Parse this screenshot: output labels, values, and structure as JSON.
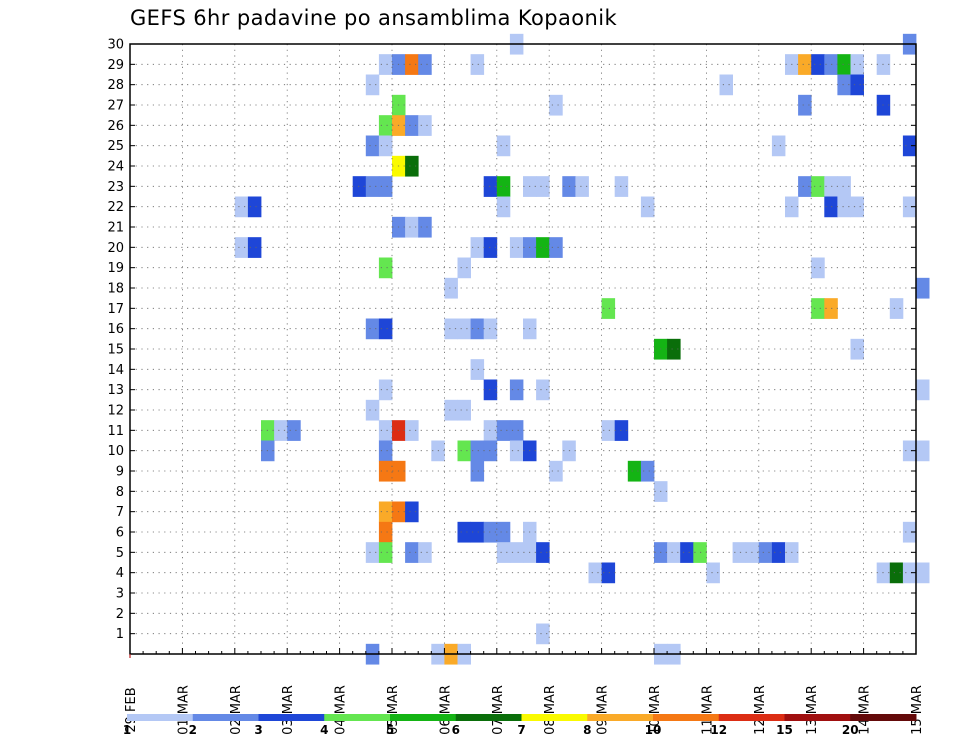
{
  "chart_data": {
    "type": "heatmap",
    "title": "GEFS 6hr padavine po ansamblima Kopaonik",
    "x_tick_labels": [
      "29 FEB",
      "01 MAR",
      "02 MAR",
      "03 MAR",
      "04 MAR",
      "05 MAR",
      "06 MAR",
      "07 MAR",
      "08 MAR",
      "09 MAR",
      "10 MAR",
      "11 MAR",
      "12 MAR",
      "13 MAR",
      "14 MAR",
      "15 MAR"
    ],
    "x_range_days": [
      0,
      15
    ],
    "steps_per_day": 4,
    "y_tick_labels": [
      "1",
      "2",
      "3",
      "4",
      "5",
      "6",
      "7",
      "8",
      "9",
      "10",
      "11",
      "12",
      "13",
      "14",
      "15",
      "16",
      "17",
      "18",
      "19",
      "20",
      "21",
      "22",
      "23",
      "24",
      "25",
      "26",
      "27",
      "28",
      "29",
      "30"
    ],
    "y_range": [
      0,
      30
    ],
    "grid": true,
    "legend_position": "bottom",
    "legend": {
      "colors": [
        "#b4c8f5",
        "#6489e6",
        "#1e46d7",
        "#64e650",
        "#14b414",
        "#0a6e0a",
        "#fafa00",
        "#faaa28",
        "#f57814",
        "#dc2d14",
        "#a00f0f",
        "#640a0a"
      ],
      "labels": [
        "1",
        "2",
        "3",
        "4",
        "5",
        "6",
        "7",
        "8",
        "10",
        "12",
        "15",
        "20"
      ]
    },
    "cells": [
      {
        "m": 30,
        "s": 29,
        "c": 1
      },
      {
        "m": 30,
        "s": 59,
        "c": 2
      },
      {
        "m": 29,
        "s": 19,
        "c": 1
      },
      {
        "m": 29,
        "s": 20,
        "c": 2
      },
      {
        "m": 29,
        "s": 21,
        "c": 9
      },
      {
        "m": 29,
        "s": 22,
        "c": 2
      },
      {
        "m": 29,
        "s": 26,
        "c": 1
      },
      {
        "m": 29,
        "s": 50,
        "c": 1
      },
      {
        "m": 29,
        "s": 51,
        "c": 8
      },
      {
        "m": 29,
        "s": 52,
        "c": 3
      },
      {
        "m": 29,
        "s": 53,
        "c": 2
      },
      {
        "m": 29,
        "s": 54,
        "c": 5
      },
      {
        "m": 29,
        "s": 55,
        "c": 1
      },
      {
        "m": 29,
        "s": 57,
        "c": 1
      },
      {
        "m": 28,
        "s": 18,
        "c": 1
      },
      {
        "m": 28,
        "s": 45,
        "c": 1
      },
      {
        "m": 28,
        "s": 54,
        "c": 2
      },
      {
        "m": 28,
        "s": 55,
        "c": 3
      },
      {
        "m": 27,
        "s": 20,
        "c": 4
      },
      {
        "m": 27,
        "s": 32,
        "c": 1
      },
      {
        "m": 27,
        "s": 51,
        "c": 2
      },
      {
        "m": 27,
        "s": 57,
        "c": 3
      },
      {
        "m": 26,
        "s": 19,
        "c": 4
      },
      {
        "m": 26,
        "s": 20,
        "c": 8
      },
      {
        "m": 26,
        "s": 21,
        "c": 2
      },
      {
        "m": 26,
        "s": 22,
        "c": 1
      },
      {
        "m": 25,
        "s": 18,
        "c": 2
      },
      {
        "m": 25,
        "s": 19,
        "c": 1
      },
      {
        "m": 25,
        "s": 28,
        "c": 1
      },
      {
        "m": 25,
        "s": 49,
        "c": 1
      },
      {
        "m": 25,
        "s": 59,
        "c": 3
      },
      {
        "m": 24,
        "s": 20,
        "c": 7
      },
      {
        "m": 24,
        "s": 21,
        "c": 6
      },
      {
        "m": 23,
        "s": 17,
        "c": 3
      },
      {
        "m": 23,
        "s": 18,
        "c": 2
      },
      {
        "m": 23,
        "s": 19,
        "c": 2
      },
      {
        "m": 23,
        "s": 27,
        "c": 3
      },
      {
        "m": 23,
        "s": 28,
        "c": 5
      },
      {
        "m": 23,
        "s": 30,
        "c": 1
      },
      {
        "m": 23,
        "s": 31,
        "c": 1
      },
      {
        "m": 23,
        "s": 33,
        "c": 2
      },
      {
        "m": 23,
        "s": 34,
        "c": 1
      },
      {
        "m": 23,
        "s": 37,
        "c": 1
      },
      {
        "m": 23,
        "s": 51,
        "c": 2
      },
      {
        "m": 23,
        "s": 52,
        "c": 4
      },
      {
        "m": 23,
        "s": 53,
        "c": 1
      },
      {
        "m": 23,
        "s": 54,
        "c": 1
      },
      {
        "m": 22,
        "s": 8,
        "c": 1
      },
      {
        "m": 22,
        "s": 9,
        "c": 3
      },
      {
        "m": 22,
        "s": 28,
        "c": 1
      },
      {
        "m": 22,
        "s": 39,
        "c": 1
      },
      {
        "m": 22,
        "s": 50,
        "c": 1
      },
      {
        "m": 22,
        "s": 53,
        "c": 3
      },
      {
        "m": 22,
        "s": 54,
        "c": 1
      },
      {
        "m": 22,
        "s": 55,
        "c": 1
      },
      {
        "m": 22,
        "s": 59,
        "c": 1
      },
      {
        "m": 21,
        "s": 20,
        "c": 2
      },
      {
        "m": 21,
        "s": 21,
        "c": 1
      },
      {
        "m": 21,
        "s": 22,
        "c": 2
      },
      {
        "m": 20,
        "s": 8,
        "c": 1
      },
      {
        "m": 20,
        "s": 9,
        "c": 3
      },
      {
        "m": 20,
        "s": 26,
        "c": 1
      },
      {
        "m": 20,
        "s": 27,
        "c": 3
      },
      {
        "m": 20,
        "s": 29,
        "c": 1
      },
      {
        "m": 20,
        "s": 30,
        "c": 2
      },
      {
        "m": 20,
        "s": 31,
        "c": 5
      },
      {
        "m": 20,
        "s": 32,
        "c": 2
      },
      {
        "m": 19,
        "s": 19,
        "c": 4
      },
      {
        "m": 19,
        "s": 25,
        "c": 1
      },
      {
        "m": 19,
        "s": 52,
        "c": 1
      },
      {
        "m": 18,
        "s": 24,
        "c": 1
      },
      {
        "m": 18,
        "s": 60,
        "c": 2
      },
      {
        "m": 17,
        "s": 36,
        "c": 4
      },
      {
        "m": 17,
        "s": 52,
        "c": 4
      },
      {
        "m": 17,
        "s": 53,
        "c": 8
      },
      {
        "m": 17,
        "s": 58,
        "c": 1
      },
      {
        "m": 16,
        "s": 18,
        "c": 2
      },
      {
        "m": 16,
        "s": 19,
        "c": 3
      },
      {
        "m": 16,
        "s": 24,
        "c": 1
      },
      {
        "m": 16,
        "s": 25,
        "c": 1
      },
      {
        "m": 16,
        "s": 26,
        "c": 2
      },
      {
        "m": 16,
        "s": 27,
        "c": 1
      },
      {
        "m": 16,
        "s": 30,
        "c": 1
      },
      {
        "m": 15,
        "s": 40,
        "c": 5
      },
      {
        "m": 15,
        "s": 41,
        "c": 6
      },
      {
        "m": 15,
        "s": 55,
        "c": 1
      },
      {
        "m": 14,
        "s": 26,
        "c": 1
      },
      {
        "m": 13,
        "s": 19,
        "c": 1
      },
      {
        "m": 13,
        "s": 27,
        "c": 3
      },
      {
        "m": 13,
        "s": 29,
        "c": 2
      },
      {
        "m": 13,
        "s": 31,
        "c": 1
      },
      {
        "m": 13,
        "s": 60,
        "c": 1
      },
      {
        "m": 12,
        "s": 18,
        "c": 1
      },
      {
        "m": 12,
        "s": 24,
        "c": 1
      },
      {
        "m": 12,
        "s": 25,
        "c": 1
      },
      {
        "m": 11,
        "s": 10,
        "c": 4
      },
      {
        "m": 11,
        "s": 11,
        "c": 1
      },
      {
        "m": 11,
        "s": 12,
        "c": 2
      },
      {
        "m": 11,
        "s": 19,
        "c": 1
      },
      {
        "m": 11,
        "s": 20,
        "c": 10
      },
      {
        "m": 11,
        "s": 21,
        "c": 1
      },
      {
        "m": 11,
        "s": 27,
        "c": 1
      },
      {
        "m": 11,
        "s": 28,
        "c": 2
      },
      {
        "m": 11,
        "s": 29,
        "c": 2
      },
      {
        "m": 11,
        "s": 36,
        "c": 1
      },
      {
        "m": 11,
        "s": 37,
        "c": 3
      },
      {
        "m": 10,
        "s": 10,
        "c": 2
      },
      {
        "m": 10,
        "s": 19,
        "c": 2
      },
      {
        "m": 10,
        "s": 23,
        "c": 1
      },
      {
        "m": 10,
        "s": 25,
        "c": 4
      },
      {
        "m": 10,
        "s": 26,
        "c": 2
      },
      {
        "m": 10,
        "s": 27,
        "c": 2
      },
      {
        "m": 10,
        "s": 29,
        "c": 1
      },
      {
        "m": 10,
        "s": 30,
        "c": 3
      },
      {
        "m": 10,
        "s": 33,
        "c": 1
      },
      {
        "m": 10,
        "s": 59,
        "c": 1
      },
      {
        "m": 10,
        "s": 60,
        "c": 1
      },
      {
        "m": 9,
        "s": 19,
        "c": 9
      },
      {
        "m": 9,
        "s": 20,
        "c": 9
      },
      {
        "m": 9,
        "s": 26,
        "c": 2
      },
      {
        "m": 9,
        "s": 32,
        "c": 1
      },
      {
        "m": 9,
        "s": 38,
        "c": 5
      },
      {
        "m": 9,
        "s": 39,
        "c": 2
      },
      {
        "m": 8,
        "s": 40,
        "c": 1
      },
      {
        "m": 7,
        "s": 19,
        "c": 8
      },
      {
        "m": 7,
        "s": 20,
        "c": 9
      },
      {
        "m": 7,
        "s": 21,
        "c": 3
      },
      {
        "m": 6,
        "s": 19,
        "c": 9
      },
      {
        "m": 6,
        "s": 25,
        "c": 3
      },
      {
        "m": 6,
        "s": 26,
        "c": 3
      },
      {
        "m": 6,
        "s": 27,
        "c": 2
      },
      {
        "m": 6,
        "s": 28,
        "c": 2
      },
      {
        "m": 6,
        "s": 30,
        "c": 1
      },
      {
        "m": 6,
        "s": 59,
        "c": 1
      },
      {
        "m": 5,
        "s": 18,
        "c": 1
      },
      {
        "m": 5,
        "s": 19,
        "c": 4
      },
      {
        "m": 5,
        "s": 21,
        "c": 2
      },
      {
        "m": 5,
        "s": 22,
        "c": 1
      },
      {
        "m": 5,
        "s": 28,
        "c": 1
      },
      {
        "m": 5,
        "s": 29,
        "c": 1
      },
      {
        "m": 5,
        "s": 30,
        "c": 1
      },
      {
        "m": 5,
        "s": 31,
        "c": 3
      },
      {
        "m": 5,
        "s": 40,
        "c": 2
      },
      {
        "m": 5,
        "s": 41,
        "c": 1
      },
      {
        "m": 5,
        "s": 42,
        "c": 3
      },
      {
        "m": 5,
        "s": 43,
        "c": 4
      },
      {
        "m": 5,
        "s": 46,
        "c": 1
      },
      {
        "m": 5,
        "s": 47,
        "c": 1
      },
      {
        "m": 5,
        "s": 48,
        "c": 2
      },
      {
        "m": 5,
        "s": 49,
        "c": 3
      },
      {
        "m": 5,
        "s": 50,
        "c": 1
      },
      {
        "m": 4,
        "s": 35,
        "c": 1
      },
      {
        "m": 4,
        "s": 36,
        "c": 3
      },
      {
        "m": 4,
        "s": 44,
        "c": 1
      },
      {
        "m": 4,
        "s": 57,
        "c": 1
      },
      {
        "m": 4,
        "s": 58,
        "c": 6
      },
      {
        "m": 4,
        "s": 59,
        "c": 1
      },
      {
        "m": 4,
        "s": 60,
        "c": 1
      },
      {
        "m": 1,
        "s": 31,
        "c": 1
      },
      {
        "m": 0,
        "s": 18,
        "c": 2
      },
      {
        "m": 0,
        "s": 23,
        "c": 1
      },
      {
        "m": 0,
        "s": 24,
        "c": 8
      },
      {
        "m": 0,
        "s": 25,
        "c": 1
      },
      {
        "m": 0,
        "s": 40,
        "c": 1
      },
      {
        "m": 0,
        "s": 41,
        "c": 1
      }
    ]
  }
}
